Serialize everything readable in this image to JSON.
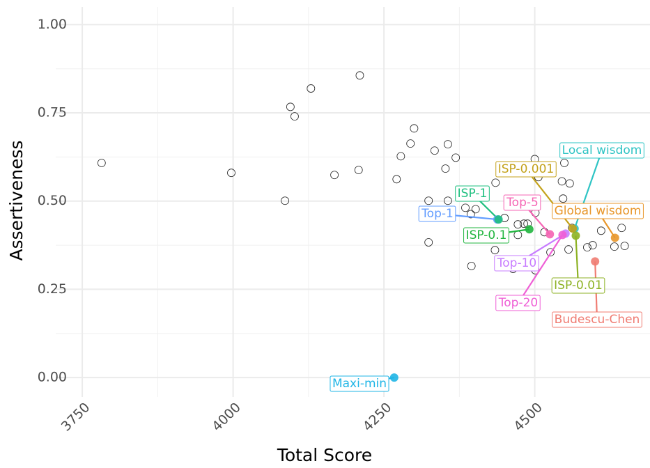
{
  "chart_data": {
    "type": "scatter",
    "x_label": "Total Score",
    "y_label": "Assertiveness",
    "xlim": [
      3706,
      4691
    ],
    "ylim": [
      -0.055,
      1.05
    ],
    "xticks": [
      3750,
      4000,
      4250,
      4500
    ],
    "yticks": [
      {
        "value": 0,
        "label": "0.00"
      },
      {
        "value": 0.25,
        "label": "0.25"
      },
      {
        "value": 0.5,
        "label": "0.50"
      },
      {
        "value": 0.75,
        "label": "0.75"
      },
      {
        "value": 1,
        "label": "1.00"
      }
    ],
    "grid": true,
    "points": {
      "x": [
        3782,
        3997,
        4086,
        4095,
        4102,
        4129,
        4168,
        4208,
        4210,
        4271,
        4278,
        4294,
        4300,
        4324,
        4334,
        4352,
        4356,
        4369,
        4356,
        4324,
        4385,
        4394,
        4402,
        4395,
        4435,
        4434,
        4450,
        4472,
        4472,
        4482,
        4488,
        4464,
        4501,
        4501,
        4500,
        4506,
        4516,
        4526,
        4545,
        4549,
        4547,
        4558,
        4556,
        4562,
        4587,
        4596,
        4610,
        4632,
        4644,
        4649
      ],
      "y": [
        0.608,
        0.58,
        0.501,
        0.767,
        0.74,
        0.819,
        0.574,
        0.588,
        0.856,
        0.562,
        0.627,
        0.663,
        0.706,
        0.501,
        0.643,
        0.592,
        0.661,
        0.623,
        0.501,
        0.383,
        0.481,
        0.463,
        0.477,
        0.316,
        0.552,
        0.361,
        0.452,
        0.404,
        0.434,
        0.436,
        0.436,
        0.308,
        0.467,
        0.304,
        0.619,
        0.568,
        0.412,
        0.355,
        0.556,
        0.608,
        0.507,
        0.55,
        0.363,
        0.424,
        0.369,
        0.375,
        0.416,
        0.371,
        0.424,
        0.373
      ]
    },
    "labeled_points": [
      {
        "name": "Maxi-min",
        "color": "#1fb5e6",
        "x": 4267,
        "y": 0.0
      },
      {
        "name": "Top-1",
        "color": "#619cff",
        "x": 4438,
        "y": 0.448
      },
      {
        "name": "ISP-1",
        "color": "#1ebf7f",
        "x": 4440,
        "y": 0.448
      },
      {
        "name": "ISP-0.1",
        "color": "#21b53f",
        "x": 4491,
        "y": 0.42
      },
      {
        "name": "Top-5",
        "color": "#f564b4",
        "x": 4525,
        "y": 0.406
      },
      {
        "name": "Top-10",
        "color": "#c77cff",
        "x": 4551,
        "y": 0.408
      },
      {
        "name": "Top-20",
        "color": "#ef5fd6",
        "x": 4546,
        "y": 0.404
      },
      {
        "name": "Local wisdom",
        "color": "#2ec4c4",
        "x": 4566,
        "y": 0.422
      },
      {
        "name": "ISP-0.001",
        "color": "#c4a21b",
        "x": 4563,
        "y": 0.422
      },
      {
        "name": "ISP-0.01",
        "color": "#8db224",
        "x": 4568,
        "y": 0.402
      },
      {
        "name": "Global wisdom",
        "color": "#e8962a",
        "x": 4633,
        "y": 0.396
      },
      {
        "name": "Budescu-Chen",
        "color": "#f07c72",
        "x": 4600,
        "y": 0.329
      }
    ]
  }
}
